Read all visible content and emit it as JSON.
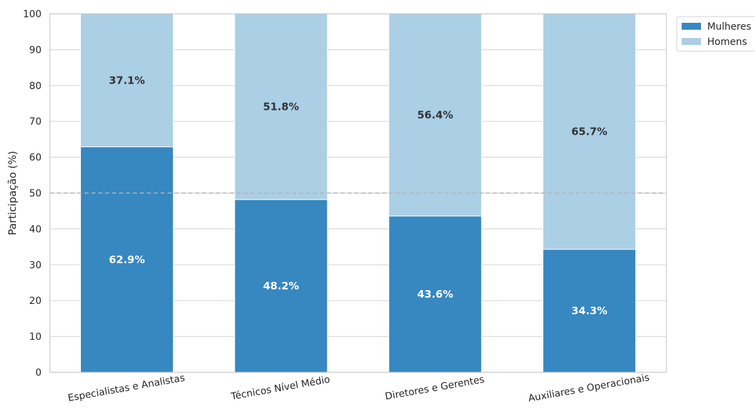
{
  "chart_data": {
    "type": "bar",
    "stacked": true,
    "categories": [
      "Especialistas e Analistas",
      "Técnicos Nível Médio",
      "Diretores e Gerentes",
      "Auxiliares e Operacionais"
    ],
    "series": [
      {
        "name": "Mulheres",
        "values": [
          62.9,
          48.2,
          43.6,
          34.3
        ],
        "color": "#3787c0",
        "label_color": "#ffffff"
      },
      {
        "name": "Homens",
        "values": [
          37.1,
          51.8,
          56.4,
          65.7
        ],
        "color": "#abcfe5",
        "label_color": "#333333"
      }
    ],
    "data_labels": {
      "Mulheres": [
        "62.9%",
        "48.2%",
        "43.6%",
        "34.3%"
      ],
      "Homens": [
        "37.1%",
        "51.8%",
        "56.4%",
        "65.7%"
      ]
    },
    "ylabel": "Participação (%)",
    "xlabel": "",
    "ylim": [
      0,
      100
    ],
    "yticks": [
      0,
      10,
      20,
      30,
      40,
      50,
      60,
      70,
      80,
      90,
      100
    ],
    "reference_line": 50,
    "grid": "horizontal",
    "legend_position": "outside-top-right",
    "colors": {
      "grid": "#d9d9d9",
      "reference": "#b3b3b3",
      "frame": "#cccccc"
    }
  }
}
